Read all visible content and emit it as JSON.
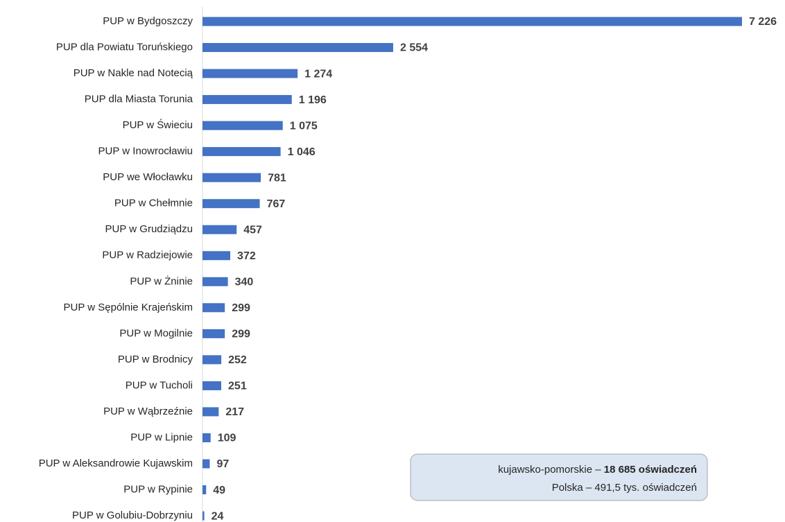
{
  "chart_data": {
    "type": "bar",
    "orientation": "horizontal",
    "color": "#4472c4",
    "categories": [
      "PUP w Bydgoszczy",
      "PUP dla Powiatu Toruńskiego",
      "PUP w Nakle nad Notecią",
      "PUP dla Miasta Torunia",
      "PUP w Świeciu",
      "PUP w Inowrocławiu",
      "PUP we Włocławku",
      "PUP w Chełmnie",
      "PUP w Grudziądzu",
      "PUP w Radziejowie",
      "PUP w Żninie",
      "PUP w Sępólnie Krajeńskim",
      "PUP w Mogilnie",
      "PUP w Brodnicy",
      "PUP w Tucholi",
      "PUP w Wąbrzeźnie",
      "PUP w Lipnie",
      "PUP w Aleksandrowie Kujawskim",
      "PUP w Rypinie",
      "PUP w Golubiu-Dobrzyniu"
    ],
    "values": [
      7226,
      2554,
      1274,
      1196,
      1075,
      1046,
      781,
      767,
      457,
      372,
      340,
      299,
      299,
      252,
      251,
      217,
      109,
      97,
      49,
      24
    ],
    "value_labels": [
      "7 226",
      "2 554",
      "1 274",
      "1 196",
      "1 075",
      "1 046",
      "781",
      "767",
      "457",
      "372",
      "340",
      "299",
      "299",
      "252",
      "251",
      "217",
      "109",
      "97",
      "49",
      "24"
    ],
    "annotation": {
      "line1": [
        "kujawsko-pomorskie –",
        "18 685 oświadczeń"
      ],
      "line2": "Polska – 491,5 tys. oświadczeń"
    }
  }
}
